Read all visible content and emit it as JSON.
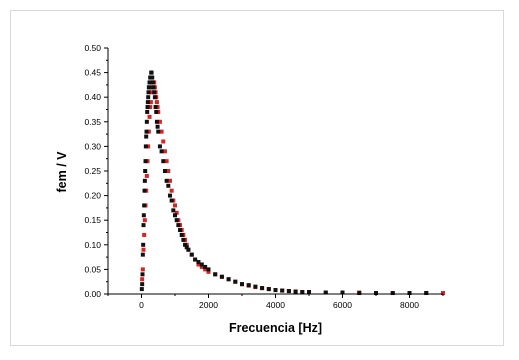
{
  "chart_data": {
    "type": "scatter",
    "title": "",
    "xlabel": "Frecuencia [Hz]",
    "ylabel": "fem / V",
    "xlim": [
      -1000,
      9000
    ],
    "ylim": [
      0,
      0.5
    ],
    "x_ticks": [
      0,
      2000,
      4000,
      6000,
      8000
    ],
    "y_ticks": [
      0.0,
      0.05,
      0.1,
      0.15,
      0.2,
      0.25,
      0.3,
      0.35,
      0.4,
      0.45,
      0.5
    ],
    "grid": false,
    "legend": "none",
    "series": [
      {
        "color": "#111111",
        "x": [
          10,
          20,
          30,
          40,
          50,
          60,
          70,
          80,
          90,
          100,
          110,
          120,
          130,
          140,
          150,
          160,
          170,
          180,
          190,
          200,
          210,
          220,
          230,
          240,
          250,
          260,
          270,
          280,
          290,
          300,
          310,
          320,
          330,
          340,
          350,
          360,
          380,
          400,
          420,
          440,
          460,
          480,
          500,
          550,
          600,
          650,
          700,
          750,
          800,
          850,
          900,
          950,
          1000,
          1050,
          1100,
          1150,
          1200,
          1250,
          1300,
          1350,
          1400,
          1500,
          1600,
          1700,
          1800,
          1900,
          2000,
          2200,
          2400,
          2600,
          2800,
          3000,
          3200,
          3400,
          3600,
          3800,
          4000,
          4200,
          4400,
          4600,
          4800,
          5000,
          5500,
          6000,
          6500,
          7000,
          7500,
          8000,
          8500
        ],
        "y": [
          0.01,
          0.02,
          0.04,
          0.08,
          0.1,
          0.14,
          0.16,
          0.18,
          0.21,
          0.23,
          0.25,
          0.27,
          0.3,
          0.32,
          0.33,
          0.35,
          0.37,
          0.38,
          0.39,
          0.4,
          0.41,
          0.42,
          0.42,
          0.43,
          0.43,
          0.44,
          0.44,
          0.44,
          0.45,
          0.45,
          0.44,
          0.44,
          0.43,
          0.43,
          0.42,
          0.42,
          0.41,
          0.4,
          0.38,
          0.37,
          0.35,
          0.34,
          0.33,
          0.3,
          0.29,
          0.27,
          0.25,
          0.23,
          0.22,
          0.2,
          0.19,
          0.17,
          0.16,
          0.15,
          0.14,
          0.13,
          0.12,
          0.11,
          0.1,
          0.095,
          0.09,
          0.08,
          0.07,
          0.065,
          0.06,
          0.055,
          0.05,
          0.04,
          0.035,
          0.03,
          0.025,
          0.02,
          0.018,
          0.015,
          0.012,
          0.01,
          0.008,
          0.007,
          0.006,
          0.005,
          0.004,
          0.004,
          0.003,
          0.003,
          0.002,
          0.002,
          0.002,
          0.002,
          0.002
        ]
      },
      {
        "color": "#dd2222",
        "x": [
          20,
          40,
          60,
          80,
          100,
          120,
          140,
          160,
          180,
          200,
          220,
          240,
          260,
          280,
          300,
          320,
          340,
          360,
          380,
          400,
          420,
          440,
          460,
          480,
          500,
          550,
          600,
          650,
          700,
          750,
          800,
          850,
          900,
          950,
          1000,
          1050,
          1100,
          1150,
          1200,
          1250,
          1300,
          1350,
          1400,
          1500,
          1600,
          1700,
          1800,
          1900,
          2000,
          2200,
          2400,
          2600,
          2800,
          3000,
          3200,
          3400,
          3600,
          3800,
          4000,
          4200,
          4400,
          4600,
          4800,
          5000,
          5500,
          6000,
          6500,
          7000,
          7500,
          8000,
          8500,
          9000
        ],
        "y": [
          0.03,
          0.05,
          0.09,
          0.12,
          0.15,
          0.18,
          0.21,
          0.24,
          0.27,
          0.3,
          0.33,
          0.36,
          0.38,
          0.39,
          0.41,
          0.42,
          0.43,
          0.43,
          0.43,
          0.42,
          0.41,
          0.4,
          0.39,
          0.38,
          0.37,
          0.35,
          0.33,
          0.31,
          0.29,
          0.27,
          0.25,
          0.23,
          0.21,
          0.19,
          0.18,
          0.165,
          0.15,
          0.14,
          0.13,
          0.12,
          0.11,
          0.1,
          0.09,
          0.08,
          0.07,
          0.06,
          0.055,
          0.05,
          0.045,
          0.04,
          0.035,
          0.03,
          0.025,
          0.02,
          0.017,
          0.014,
          0.012,
          0.01,
          0.008,
          0.007,
          0.006,
          0.005,
          0.004,
          0.004,
          0.003,
          0.003,
          0.003,
          0.002,
          0.002,
          0.002,
          0.002,
          0.002
        ]
      }
    ]
  }
}
